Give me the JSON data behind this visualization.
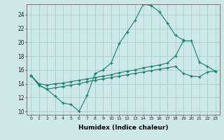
{
  "xlabel": "Humidex (Indice chaleur)",
  "bg_color": "#cce8e8",
  "grid_color": "#aacccc",
  "line_color": "#1a7a6e",
  "xlim": [
    -0.5,
    23.5
  ],
  "ylim": [
    9.5,
    25.5
  ],
  "xticks": [
    0,
    1,
    2,
    3,
    4,
    5,
    6,
    7,
    8,
    9,
    10,
    11,
    12,
    13,
    14,
    15,
    16,
    17,
    18,
    19,
    20,
    21,
    22,
    23
  ],
  "yticks": [
    10,
    12,
    14,
    16,
    18,
    20,
    22,
    24
  ],
  "c1x": [
    0,
    1,
    2,
    3,
    4,
    5,
    6,
    7,
    8,
    9,
    10,
    11,
    12,
    13,
    14,
    15,
    16,
    17,
    18,
    19
  ],
  "c1y": [
    15.2,
    13.8,
    13.2,
    12.2,
    11.2,
    11.0,
    10.0,
    12.3,
    15.5,
    16.0,
    17.0,
    19.8,
    21.5,
    23.2,
    25.5,
    25.3,
    24.4,
    22.8,
    21.0,
    20.3
  ],
  "c2x": [
    0,
    1,
    2,
    3,
    4,
    5,
    6,
    7,
    8,
    9,
    10,
    11,
    12,
    13,
    14,
    15,
    16,
    17,
    18,
    19,
    20,
    21,
    22,
    23
  ],
  "c2y": [
    15.2,
    14.0,
    13.8,
    14.0,
    14.1,
    14.3,
    14.5,
    14.7,
    14.9,
    15.1,
    15.3,
    15.6,
    15.8,
    16.0,
    16.3,
    16.5,
    16.7,
    17.0,
    18.0,
    20.2,
    20.2,
    17.1,
    16.5,
    15.8
  ],
  "c3x": [
    0,
    1,
    2,
    3,
    4,
    5,
    6,
    7,
    8,
    9,
    10,
    11,
    12,
    13,
    14,
    15,
    16,
    17,
    18,
    19,
    20,
    21,
    22,
    23
  ],
  "c3y": [
    15.2,
    13.8,
    13.2,
    13.4,
    13.6,
    13.8,
    14.0,
    14.3,
    14.5,
    14.7,
    14.9,
    15.1,
    15.3,
    15.5,
    15.7,
    15.9,
    16.1,
    16.3,
    16.5,
    15.5,
    15.1,
    15.0,
    15.7,
    15.8
  ]
}
